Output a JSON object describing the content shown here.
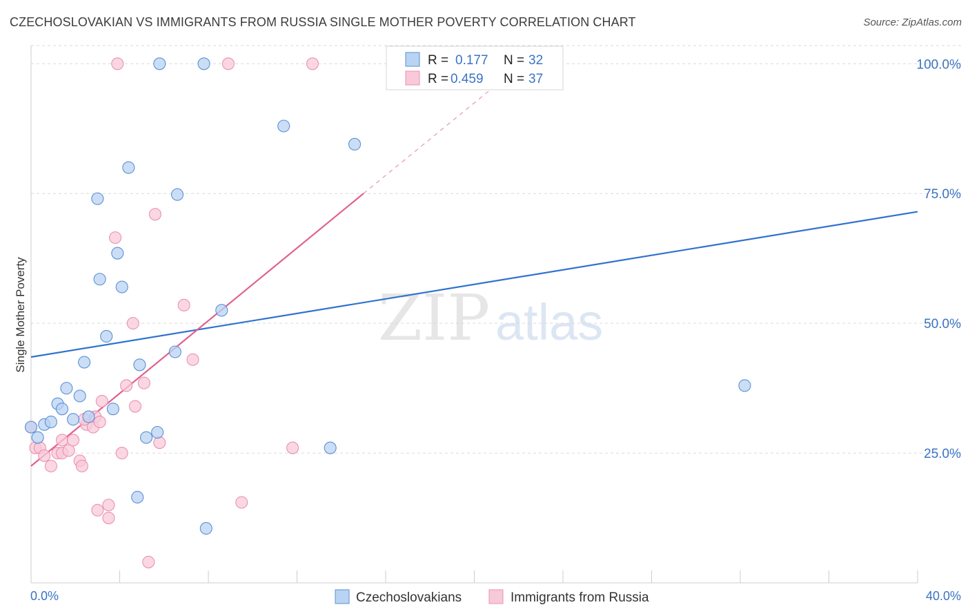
{
  "header": {
    "title": "CZECHOSLOVAKIAN VS IMMIGRANTS FROM RUSSIA SINGLE MOTHER POVERTY CORRELATION CHART",
    "source": "Source: ZipAtlas.com"
  },
  "watermark": {
    "zip": "ZIP",
    "atlas": "atlas"
  },
  "colors": {
    "blue": "#5b8fd6",
    "blue_fill": "#b9d3f3",
    "blue_line": "#2f72cf",
    "pink": "#e992b0",
    "pink_fill": "#f8c9d8",
    "pink_line": "#e0608e",
    "tick_text": "#3a73c4",
    "grid": "#d9d9d9"
  },
  "legend": {
    "rows": [
      {
        "r_label": "R =",
        "r_value": "0.177",
        "n_label": "N =",
        "n_value": "32"
      },
      {
        "r_label": "R =",
        "r_value": "0.459",
        "n_label": "N =",
        "n_value": "37"
      }
    ]
  },
  "chart_data": {
    "type": "scatter",
    "title": "CZECHOSLOVAKIAN VS IMMIGRANTS FROM RUSSIA SINGLE MOTHER POVERTY CORRELATION CHART",
    "xlabel": "",
    "ylabel": "Single Mother Poverty",
    "xlim": [
      0,
      40
    ],
    "ylim": [
      0,
      103.5
    ],
    "x_tick_labels": [
      "0.0%",
      "40.0%"
    ],
    "y_ticks": [
      25,
      50,
      75,
      100
    ],
    "y_tick_labels": [
      "25.0%",
      "50.0%",
      "75.0%",
      "100.0%"
    ],
    "grid": true,
    "legend_position": "bottom-center",
    "series": [
      {
        "name": "Czechoslovakians",
        "r": 0.177,
        "n": 32,
        "trend": {
          "x0": 0,
          "y0": 43.5,
          "x1": 40,
          "y1": 71.5
        },
        "points": [
          [
            0.0,
            30.0
          ],
          [
            0.3,
            28.0
          ],
          [
            0.6,
            30.5
          ],
          [
            0.9,
            31.0
          ],
          [
            1.2,
            34.5
          ],
          [
            1.4,
            33.5
          ],
          [
            1.6,
            37.5
          ],
          [
            1.9,
            31.5
          ],
          [
            2.2,
            36.0
          ],
          [
            2.6,
            32.0
          ],
          [
            2.4,
            42.5
          ],
          [
            3.0,
            74.0
          ],
          [
            3.1,
            58.5
          ],
          [
            3.4,
            47.5
          ],
          [
            3.7,
            33.5
          ],
          [
            3.9,
            63.5
          ],
          [
            4.1,
            57.0
          ],
          [
            4.4,
            80.0
          ],
          [
            4.8,
            16.5
          ],
          [
            4.9,
            42.0
          ],
          [
            5.2,
            28.0
          ],
          [
            5.7,
            29.0
          ],
          [
            5.8,
            100.0
          ],
          [
            6.5,
            44.5
          ],
          [
            6.6,
            74.8
          ],
          [
            7.8,
            100.0
          ],
          [
            7.9,
            10.5
          ],
          [
            8.6,
            52.5
          ],
          [
            11.4,
            88.0
          ],
          [
            13.5,
            26.0
          ],
          [
            14.6,
            84.5
          ],
          [
            32.2,
            38.0
          ]
        ]
      },
      {
        "name": "Immigrants from Russia",
        "r": 0.459,
        "n": 37,
        "trend": {
          "x0": 0,
          "y0": 22.5,
          "x1": 15.0,
          "y1": 75.0,
          "dash_x1": 21.5,
          "dash_y1": 97.7
        },
        "points": [
          [
            0.0,
            30.0
          ],
          [
            0.2,
            26.0
          ],
          [
            0.4,
            26.0
          ],
          [
            0.6,
            24.5
          ],
          [
            0.9,
            22.5
          ],
          [
            1.2,
            25.0
          ],
          [
            1.4,
            27.5
          ],
          [
            1.4,
            25.0
          ],
          [
            1.7,
            25.5
          ],
          [
            1.9,
            27.5
          ],
          [
            2.2,
            23.5
          ],
          [
            2.3,
            22.5
          ],
          [
            2.5,
            30.5
          ],
          [
            2.8,
            30.0
          ],
          [
            2.9,
            32.0
          ],
          [
            3.0,
            14.0
          ],
          [
            3.1,
            31.0
          ],
          [
            3.2,
            35.0
          ],
          [
            3.5,
            15.0
          ],
          [
            3.5,
            12.5
          ],
          [
            3.8,
            66.5
          ],
          [
            3.9,
            100.0
          ],
          [
            4.1,
            25.0
          ],
          [
            4.3,
            38.0
          ],
          [
            4.6,
            50.0
          ],
          [
            4.7,
            34.0
          ],
          [
            5.1,
            38.5
          ],
          [
            5.3,
            4.0
          ],
          [
            5.6,
            71.0
          ],
          [
            5.8,
            27.0
          ],
          [
            6.9,
            53.5
          ],
          [
            7.3,
            43.0
          ],
          [
            8.9,
            100.0
          ],
          [
            9.5,
            15.5
          ],
          [
            11.8,
            26.0
          ],
          [
            12.7,
            100.0
          ],
          [
            2.4,
            31.5
          ]
        ]
      }
    ]
  }
}
